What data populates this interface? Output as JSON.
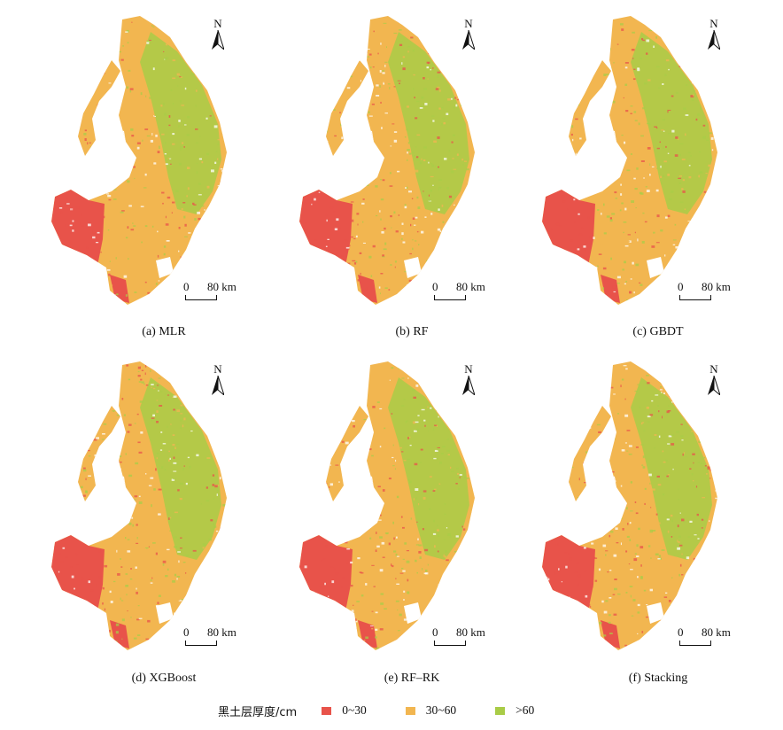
{
  "north_label": "N",
  "scale": {
    "zero": "0",
    "max": "80 km"
  },
  "panels": [
    {
      "caption": "(a) MLR"
    },
    {
      "caption": "(b) RF"
    },
    {
      "caption": "(c) GBDT"
    },
    {
      "caption": "(d) XGBoost"
    },
    {
      "caption": "(e) RF–RK"
    },
    {
      "caption": "(f) Stacking"
    }
  ],
  "legend": {
    "title": "黑土层厚度/cm",
    "classes": [
      {
        "label": "0~30",
        "color": "#e8534a"
      },
      {
        "label": "30~60",
        "color": "#f2b650"
      },
      {
        "label": ">60",
        "color": "#a9cc47"
      }
    ]
  }
}
